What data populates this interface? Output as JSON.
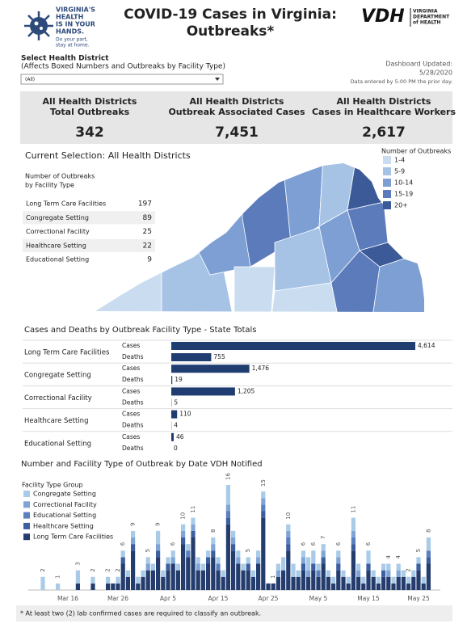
{
  "logo": {
    "lines": [
      "VIRGINIA'S",
      "HEALTH",
      "IS IN YOUR",
      "HANDS."
    ],
    "sub": [
      "Do your part,",
      "stay at home."
    ]
  },
  "header": {
    "title_lines": [
      "COVID-19 Cases in Virginia:",
      "Outbreaks*"
    ]
  },
  "vdh": {
    "mark": "VDH",
    "lines": [
      "VIRGINIA",
      "DEPARTMENT",
      "of HEALTH"
    ]
  },
  "filter": {
    "label": "Select Health District",
    "sublabel": "(Affects Boxed Numbers and Outbreaks by Facility Type)",
    "selected": "(All)"
  },
  "updated": {
    "label": "Dashboard Updated:",
    "date": "5/28/2020",
    "note": "Data entered by 5:00 PM the prior day."
  },
  "kpis": [
    {
      "title": [
        "All Health Districts",
        "Total Outbreaks"
      ],
      "value": "342"
    },
    {
      "title": [
        "All Health Districts",
        "Outbreak Associated Cases"
      ],
      "value": "7,451"
    },
    {
      "title": [
        "All Health Districts",
        "Cases in Healthcare Workers"
      ],
      "value": "2,617"
    }
  ],
  "selection": {
    "title": "Current Selection: All Health Districts",
    "table_title": [
      "Number of Outbreaks",
      "by Facility Type"
    ],
    "rows": [
      [
        "Long Term Care Facilities",
        197
      ],
      [
        "Congregate Setting",
        89
      ],
      [
        "Correctional Facility",
        25
      ],
      [
        "Healthcare Setting",
        22
      ],
      [
        "Educational Setting",
        9
      ]
    ]
  },
  "map": {
    "legend_title": "Number of Outbreaks",
    "bins": [
      {
        "label": "1-4",
        "color": "#c9dcf0"
      },
      {
        "label": "5-9",
        "color": "#a6c3e6"
      },
      {
        "label": "10-14",
        "color": "#7d9fd4"
      },
      {
        "label": "15-19",
        "color": "#5b7bbb"
      },
      {
        "label": "20+",
        "color": "#3c5a97"
      }
    ]
  },
  "chart_data": [
    {
      "type": "hbar",
      "title": "Cases and Deaths by Outbreak Facility Type - State Totals",
      "color": "#1f3d70",
      "categories": [
        "Long Term Care Facilities",
        "Congregate Setting",
        "Correctional Facility",
        "Healthcare Setting",
        "Educational Setting"
      ],
      "series": [
        {
          "name": "Cases",
          "values": [
            4614,
            1476,
            1205,
            110,
            46
          ],
          "value_labels": [
            "4,614",
            "1,476",
            "1,205",
            "110",
            "46"
          ]
        },
        {
          "name": "Deaths",
          "values": [
            755,
            19,
            5,
            4,
            0
          ]
        }
      ]
    },
    {
      "type": "stacked_bar",
      "title": "Number and Facility Type of Outbreak by Date VDH Notified",
      "legend_title": "Facility Type Group",
      "categories": [
        null,
        null,
        null,
        null,
        null,
        null,
        null,
        "Mar 16",
        null,
        null,
        null,
        null,
        null,
        null,
        null,
        null,
        null,
        "Mar 26",
        null,
        null,
        null,
        null,
        null,
        null,
        null,
        null,
        null,
        "Apr 5",
        null,
        null,
        null,
        null,
        null,
        null,
        null,
        null,
        null,
        "Apr 15",
        null,
        null,
        null,
        null,
        null,
        null,
        null,
        null,
        null,
        "Apr 25",
        null,
        null,
        null,
        null,
        null,
        null,
        null,
        null,
        null,
        "May 5",
        null,
        null,
        null,
        null,
        null,
        null,
        null,
        null,
        null,
        "May 15",
        null,
        null,
        null,
        null,
        null,
        null,
        null,
        null,
        null,
        "May 25",
        null,
        null
      ],
      "series": [
        {
          "name": "Congregate Setting",
          "color": "#a9cbe8",
          "values": [
            0,
            0,
            2,
            0,
            0,
            1,
            0,
            0,
            0,
            2,
            0,
            0,
            1,
            0,
            0,
            1,
            0,
            1,
            1,
            1,
            1,
            1,
            1,
            1,
            1,
            2,
            1,
            1,
            1,
            1,
            1,
            1,
            1,
            1,
            1,
            1,
            1,
            1,
            1,
            3,
            1,
            1,
            1,
            1,
            1,
            1,
            1,
            0,
            0,
            1,
            2,
            1,
            2,
            1,
            1,
            2,
            2,
            1,
            1,
            1,
            1,
            1,
            1,
            1,
            2,
            1,
            1,
            2,
            1,
            1,
            1,
            1,
            1,
            1,
            1,
            1,
            1,
            1,
            1,
            2
          ]
        },
        {
          "name": "Correctional Facility",
          "color": "#7ea5d6",
          "values": [
            0,
            0,
            0,
            0,
            0,
            0,
            0,
            0,
            0,
            0,
            0,
            0,
            0,
            0,
            0,
            0,
            0,
            0,
            0,
            0,
            1,
            0,
            0,
            1,
            0,
            1,
            0,
            0,
            1,
            0,
            1,
            0,
            1,
            1,
            0,
            0,
            1,
            0,
            0,
            1,
            1,
            1,
            0,
            0,
            0,
            1,
            1,
            0,
            0,
            1,
            0,
            1,
            0,
            0,
            1,
            1,
            0,
            0,
            1,
            0,
            0,
            1,
            0,
            0,
            1,
            1,
            0,
            0,
            0,
            0,
            0,
            1,
            0,
            1,
            0,
            0,
            0,
            0,
            0,
            0
          ]
        },
        {
          "name": "Educational Setting",
          "color": "#5a80c0",
          "values": [
            0,
            0,
            0,
            0,
            0,
            0,
            0,
            0,
            0,
            0,
            0,
            0,
            0,
            0,
            0,
            0,
            0,
            0,
            0,
            0,
            0,
            0,
            0,
            0,
            0,
            0,
            0,
            0,
            0,
            0,
            0,
            1,
            0,
            0,
            0,
            0,
            0,
            1,
            0,
            1,
            0,
            0,
            0,
            0,
            0,
            0,
            1,
            0,
            0,
            0,
            0,
            1,
            0,
            0,
            0,
            0,
            0,
            1,
            0,
            0,
            0,
            0,
            0,
            0,
            1,
            0,
            0,
            0,
            0,
            0,
            0,
            0,
            0,
            0,
            0,
            0,
            0,
            0,
            0,
            1
          ]
        },
        {
          "name": "Healthcare Setting",
          "color": "#3d5fa0",
          "values": [
            0,
            0,
            0,
            0,
            0,
            0,
            0,
            0,
            0,
            0,
            0,
            0,
            0,
            0,
            0,
            0,
            0,
            0,
            1,
            0,
            1,
            0,
            0,
            0,
            0,
            1,
            0,
            1,
            0,
            0,
            1,
            0,
            1,
            0,
            0,
            1,
            1,
            0,
            0,
            1,
            1,
            0,
            0,
            1,
            0,
            0,
            1,
            0,
            0,
            0,
            0,
            1,
            0,
            0,
            1,
            0,
            1,
            0,
            1,
            0,
            0,
            1,
            0,
            0,
            1,
            0,
            0,
            1,
            0,
            0,
            1,
            0,
            0,
            0,
            0,
            0,
            0,
            1,
            0,
            1
          ]
        },
        {
          "name": "Long Term Care Facilities",
          "color": "#243d6e",
          "values": [
            0,
            0,
            0,
            0,
            0,
            0,
            0,
            0,
            0,
            1,
            0,
            0,
            1,
            0,
            0,
            1,
            1,
            1,
            4,
            2,
            6,
            1,
            2,
            3,
            3,
            5,
            2,
            3,
            4,
            3,
            7,
            5,
            8,
            3,
            3,
            4,
            5,
            3,
            2,
            10,
            6,
            4,
            3,
            3,
            2,
            4,
            11,
            1,
            1,
            2,
            3,
            6,
            2,
            2,
            3,
            2,
            3,
            2,
            4,
            2,
            1,
            3,
            2,
            1,
            6,
            2,
            1,
            3,
            2,
            1,
            2,
            2,
            1,
            2,
            2,
            1,
            2,
            3,
            1,
            4
          ]
        }
      ],
      "total_labels": [
        null,
        null,
        2,
        null,
        null,
        1,
        null,
        null,
        null,
        3,
        null,
        null,
        2,
        null,
        null,
        2,
        null,
        2,
        6,
        null,
        9,
        null,
        null,
        5,
        null,
        9,
        null,
        null,
        6,
        null,
        10,
        null,
        11,
        null,
        null,
        null,
        8,
        null,
        null,
        16,
        null,
        null,
        null,
        5,
        null,
        null,
        15,
        null,
        1,
        null,
        null,
        10,
        null,
        null,
        6,
        null,
        6,
        null,
        7,
        null,
        null,
        6,
        null,
        null,
        11,
        null,
        null,
        6,
        null,
        null,
        null,
        4,
        null,
        4,
        null,
        2,
        null,
        5,
        null,
        8
      ]
    }
  ],
  "footer": "* At least two (2) lab confirmed cases are required to classify an outbreak."
}
